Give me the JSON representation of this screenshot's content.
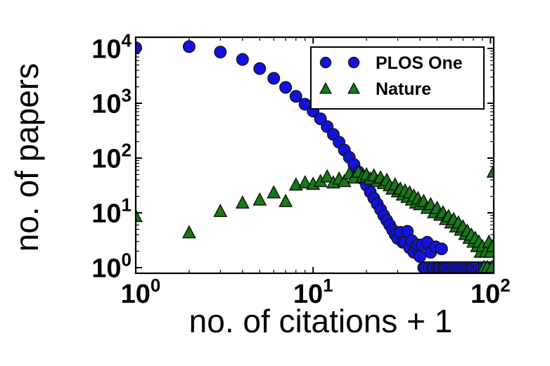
{
  "figure": {
    "background": "#ffffff",
    "frame_color": "#000000"
  },
  "chart_data": {
    "type": "scatter",
    "x_scale": "log",
    "y_scale": "log",
    "xlabel": "no. of citations + 1",
    "ylabel": "no. of papers",
    "xlim": [
      1,
      104.5
    ],
    "ylim": [
      0.79,
      16000
    ],
    "grid": false,
    "legend_position": "upper right",
    "tick_label_base": "10",
    "x_tick_exponents": [
      0,
      1,
      2
    ],
    "y_tick_exponents": [
      0,
      1,
      2,
      3,
      4
    ],
    "series": [
      {
        "name": "PLOS One",
        "marker": "circle",
        "color": "#1212e0",
        "edge_color": "#15151a",
        "points": [
          [
            1,
            10300
          ],
          [
            2,
            10800
          ],
          [
            3,
            8600
          ],
          [
            4,
            6300
          ],
          [
            5,
            4300
          ],
          [
            6,
            2850
          ],
          [
            7,
            1950
          ],
          [
            8,
            1340
          ],
          [
            9,
            960
          ],
          [
            10,
            720
          ],
          [
            11,
            520
          ],
          [
            12,
            375
          ],
          [
            13,
            270
          ],
          [
            14,
            195
          ],
          [
            15,
            140
          ],
          [
            16,
            103
          ],
          [
            17,
            76
          ],
          [
            18,
            56
          ],
          [
            19,
            42
          ],
          [
            20,
            32
          ],
          [
            21,
            24
          ],
          [
            22,
            18.5
          ],
          [
            23,
            14.5
          ],
          [
            24,
            11.5
          ],
          [
            25,
            9
          ],
          [
            26,
            7.3
          ],
          [
            27,
            6
          ],
          [
            28,
            4.9
          ],
          [
            29,
            4
          ],
          [
            30,
            3.4
          ],
          [
            31,
            4.4
          ],
          [
            32,
            2.9
          ],
          [
            33,
            2.9
          ],
          [
            34,
            4.6
          ],
          [
            35,
            2.3
          ],
          [
            36,
            3.1
          ],
          [
            37,
            1.9
          ],
          [
            38,
            2.4
          ],
          [
            39,
            2.6
          ],
          [
            40,
            1.6
          ],
          [
            41,
            2.6
          ],
          [
            42,
            1
          ],
          [
            43,
            1
          ],
          [
            44,
            2.9
          ],
          [
            45,
            1
          ],
          [
            46,
            1.9
          ],
          [
            47,
            1
          ],
          [
            48,
            1
          ],
          [
            49,
            2.4
          ],
          [
            50,
            1
          ],
          [
            51,
            1
          ],
          [
            52,
            1
          ],
          [
            53,
            2.2
          ],
          [
            54,
            1
          ],
          [
            55,
            1
          ],
          [
            56,
            1
          ],
          [
            58,
            1
          ],
          [
            60,
            1
          ],
          [
            62,
            1
          ],
          [
            64,
            1
          ],
          [
            66,
            1
          ],
          [
            68,
            1
          ],
          [
            70,
            1
          ],
          [
            72,
            1
          ],
          [
            74,
            1
          ],
          [
            76,
            1
          ],
          [
            78,
            1
          ],
          [
            80,
            1
          ],
          [
            83,
            1
          ],
          [
            86,
            1
          ],
          [
            89,
            1
          ],
          [
            92,
            1
          ],
          [
            95,
            1
          ],
          [
            98,
            1
          ],
          [
            101,
            1
          ],
          [
            104,
            1
          ]
        ]
      },
      {
        "name": "Nature",
        "marker": "triangle_up",
        "color": "#177917",
        "edge_color": "#0d120d",
        "points": [
          [
            1,
            8.5
          ],
          [
            2,
            4.3
          ],
          [
            3,
            10.5
          ],
          [
            4,
            15
          ],
          [
            5,
            17
          ],
          [
            6,
            23
          ],
          [
            7,
            16
          ],
          [
            8,
            32
          ],
          [
            9,
            35
          ],
          [
            10,
            33
          ],
          [
            11,
            37
          ],
          [
            12,
            45
          ],
          [
            13,
            35
          ],
          [
            14,
            41
          ],
          [
            15,
            37
          ],
          [
            16,
            51
          ],
          [
            17,
            43
          ],
          [
            18,
            55
          ],
          [
            19,
            45
          ],
          [
            20,
            49
          ],
          [
            21,
            41
          ],
          [
            22,
            47
          ],
          [
            23,
            37
          ],
          [
            24,
            43
          ],
          [
            25,
            34
          ],
          [
            26,
            39
          ],
          [
            27,
            31
          ],
          [
            28,
            27
          ],
          [
            29,
            32
          ],
          [
            30,
            24
          ],
          [
            31,
            27
          ],
          [
            32,
            21
          ],
          [
            33,
            25
          ],
          [
            34,
            19
          ],
          [
            35,
            23
          ],
          [
            36,
            17
          ],
          [
            37,
            20
          ],
          [
            38,
            15
          ],
          [
            39,
            18
          ],
          [
            40,
            14
          ],
          [
            42,
            16
          ],
          [
            44,
            12
          ],
          [
            46,
            14
          ],
          [
            48,
            10
          ],
          [
            50,
            12
          ],
          [
            52,
            9
          ],
          [
            54,
            10
          ],
          [
            56,
            7.5
          ],
          [
            58,
            8.5
          ],
          [
            60,
            6.5
          ],
          [
            62,
            7.5
          ],
          [
            64,
            5.5
          ],
          [
            66,
            6.5
          ],
          [
            68,
            4.8
          ],
          [
            70,
            5.5
          ],
          [
            72,
            4
          ],
          [
            74,
            4.6
          ],
          [
            76,
            3.4
          ],
          [
            78,
            3.9
          ],
          [
            80,
            2.9
          ],
          [
            82,
            3.4
          ],
          [
            84,
            2.4
          ],
          [
            86,
            2.9
          ],
          [
            88,
            1.9
          ],
          [
            90,
            2.4
          ],
          [
            92,
            1
          ],
          [
            94,
            1.9
          ],
          [
            96,
            1
          ],
          [
            98,
            2.9
          ],
          [
            100,
            1.9
          ],
          [
            102,
            1
          ],
          [
            103,
            2.4
          ],
          [
            104,
            55
          ]
        ]
      }
    ]
  },
  "legend": {
    "entries": [
      {
        "label": "PLOS One"
      },
      {
        "label": "Nature"
      }
    ]
  }
}
